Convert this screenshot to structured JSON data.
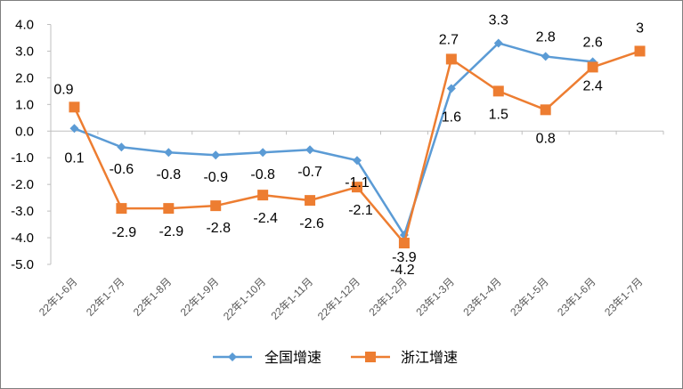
{
  "chart_data": {
    "type": "line",
    "title": "",
    "xlabel": "",
    "ylabel": "",
    "ylim": [
      -5.0,
      4.0
    ],
    "y_ticks": [
      "4.0",
      "3.0",
      "2.0",
      "1.0",
      "0.0",
      "-1.0",
      "-2.0",
      "-3.0",
      "-4.0",
      "-5.0"
    ],
    "grid": false,
    "legend_position": "bottom",
    "categories": [
      "22年1-6月",
      "22年1-7月",
      "22年1-8月",
      "22年1-9月",
      "22年1-10月",
      "22年1-11月",
      "22年1-12月",
      "23年1-2月",
      "23年1-3月",
      "23年1-4月",
      "23年1-5月",
      "23年1-6月",
      "23年1-7月"
    ],
    "series": [
      {
        "name": "全国增速",
        "color": "#5b9bd5",
        "marker": "diamond",
        "values": [
          0.1,
          -0.6,
          -0.8,
          -0.9,
          -0.8,
          -0.7,
          -1.1,
          -3.9,
          1.6,
          3.3,
          2.8,
          2.6,
          null
        ],
        "labels": [
          "0.1",
          "-0.6",
          "-0.8",
          "-0.9",
          "-0.8",
          "-0.7",
          "-1.1",
          "-3.9",
          "1.6",
          "3.3",
          "2.8",
          "2.6",
          ""
        ]
      },
      {
        "name": "浙江增速",
        "color": "#ed7d31",
        "marker": "square",
        "values": [
          0.9,
          -2.9,
          -2.9,
          -2.8,
          -2.4,
          -2.6,
          -2.1,
          -4.2,
          2.7,
          1.5,
          0.8,
          2.4,
          3.0
        ],
        "labels": [
          "0.9",
          "-2.9",
          "-2.9",
          "-2.8",
          "-2.4",
          "-2.6",
          "-2.1",
          "-4.2",
          "2.7",
          "1.5",
          "0.8",
          "2.4",
          "3"
        ]
      }
    ]
  }
}
